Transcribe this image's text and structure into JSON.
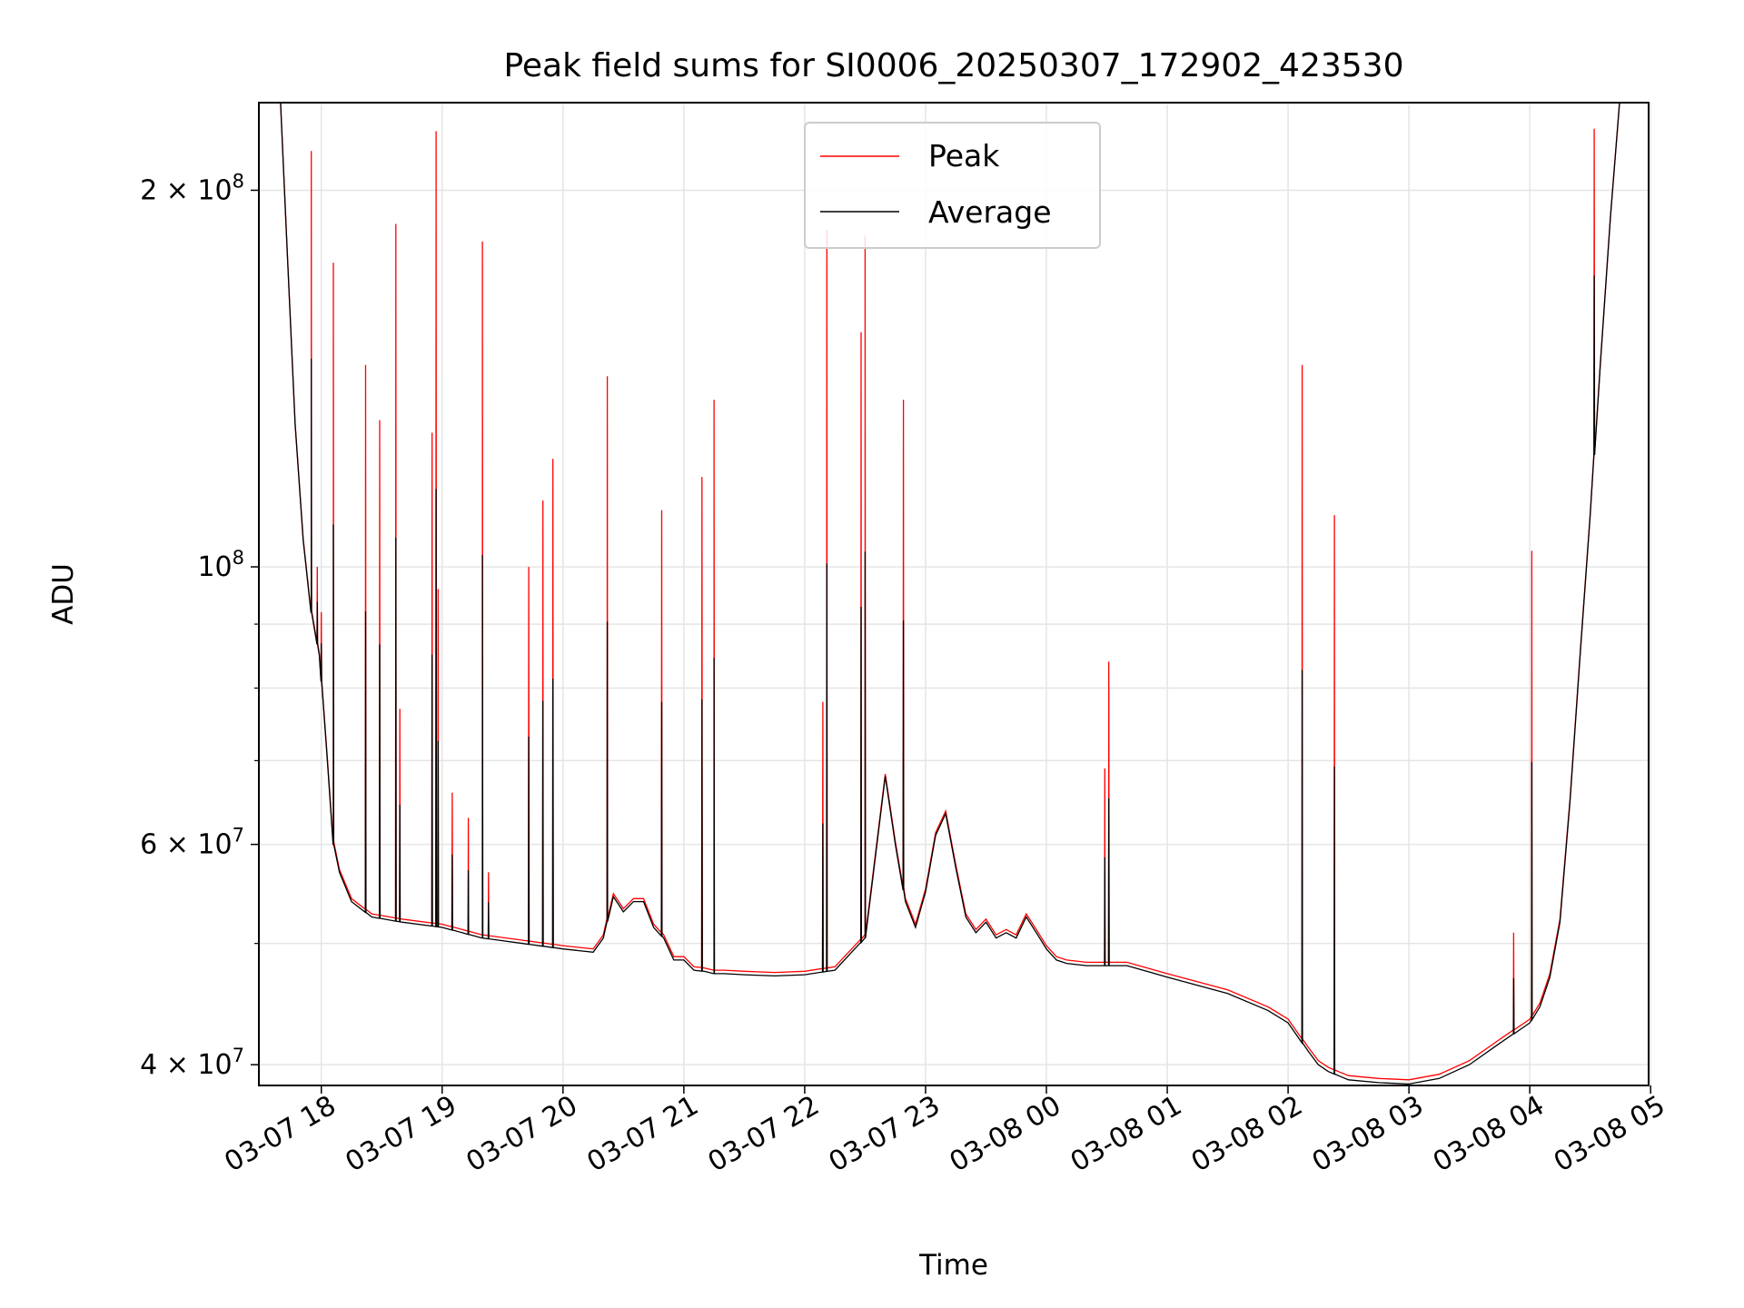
{
  "chart_data": {
    "type": "line",
    "title": "Peak field sums for SI0006_20250307_172902_423530",
    "xlabel": "Time",
    "ylabel": "ADU",
    "yscale": "log",
    "xlim": [
      "2025-03-07 17:29",
      "2025-03-08 04:59"
    ],
    "ylim": [
      38500000,
      235000000
    ],
    "grid": true,
    "legend_position": "upper center",
    "x_ticks": [
      {
        "value": "2025-03-07 18:00",
        "label": "03-07 18"
      },
      {
        "value": "2025-03-07 19:00",
        "label": "03-07 19"
      },
      {
        "value": "2025-03-07 20:00",
        "label": "03-07 20"
      },
      {
        "value": "2025-03-07 21:00",
        "label": "03-07 21"
      },
      {
        "value": "2025-03-07 22:00",
        "label": "03-07 22"
      },
      {
        "value": "2025-03-07 23:00",
        "label": "03-07 23"
      },
      {
        "value": "2025-03-08 00:00",
        "label": "03-08 00"
      },
      {
        "value": "2025-03-08 01:00",
        "label": "03-08 01"
      },
      {
        "value": "2025-03-08 02:00",
        "label": "03-08 02"
      },
      {
        "value": "2025-03-08 03:00",
        "label": "03-08 03"
      },
      {
        "value": "2025-03-08 04:00",
        "label": "03-08 04"
      },
      {
        "value": "2025-03-08 05:00",
        "label": "03-08 05"
      }
    ],
    "y_ticks_major": [
      {
        "value": 40000000,
        "label": "4 × 10⁷",
        "mant": "4",
        "exp": "7"
      },
      {
        "value": 60000000,
        "label": "6 × 10⁷",
        "mant": "6",
        "exp": "7"
      },
      {
        "value": 100000000,
        "label": "10⁸",
        "mant": "",
        "exp": "8"
      },
      {
        "value": 200000000,
        "label": "2 × 10⁸",
        "mant": "2",
        "exp": "8"
      }
    ],
    "y_ticks_minor": [
      50000000,
      70000000,
      80000000,
      90000000
    ],
    "series": [
      {
        "name": "Average",
        "color": "#000000",
        "x": [
          "2025-03-07 17:39",
          "2025-03-07 17:43",
          "2025-03-07 17:47",
          "2025-03-07 17:51",
          "2025-03-07 17:55",
          "2025-03-07 17:59",
          "2025-03-07 18:03",
          "2025-03-07 18:06",
          "2025-03-07 18:09",
          "2025-03-07 18:15",
          "2025-03-07 18:25",
          "2025-03-07 18:40",
          "2025-03-07 19:00",
          "2025-03-07 19:20",
          "2025-03-07 19:40",
          "2025-03-07 20:00",
          "2025-03-07 20:15",
          "2025-03-07 20:20",
          "2025-03-07 20:25",
          "2025-03-07 20:30",
          "2025-03-07 20:35",
          "2025-03-07 20:40",
          "2025-03-07 20:45",
          "2025-03-07 20:50",
          "2025-03-07 20:55",
          "2025-03-07 21:00",
          "2025-03-07 21:05",
          "2025-03-07 21:10",
          "2025-03-07 21:15",
          "2025-03-07 21:20",
          "2025-03-07 21:30",
          "2025-03-07 21:45",
          "2025-03-07 22:00",
          "2025-03-07 22:15",
          "2025-03-07 22:30",
          "2025-03-07 22:40",
          "2025-03-07 22:45",
          "2025-03-07 22:50",
          "2025-03-07 22:55",
          "2025-03-07 23:00",
          "2025-03-07 23:05",
          "2025-03-07 23:10",
          "2025-03-07 23:15",
          "2025-03-07 23:20",
          "2025-03-07 23:25",
          "2025-03-07 23:30",
          "2025-03-07 23:35",
          "2025-03-07 23:40",
          "2025-03-07 23:45",
          "2025-03-07 23:50",
          "2025-03-07 23:55",
          "2025-03-08 00:00",
          "2025-03-08 00:05",
          "2025-03-08 00:10",
          "2025-03-08 00:20",
          "2025-03-08 00:40",
          "2025-03-08 01:00",
          "2025-03-08 01:30",
          "2025-03-08 01:50",
          "2025-03-08 02:00",
          "2025-03-08 02:10",
          "2025-03-08 02:15",
          "2025-03-08 02:20",
          "2025-03-08 02:25",
          "2025-03-08 02:30",
          "2025-03-08 02:45",
          "2025-03-08 03:00",
          "2025-03-08 03:15",
          "2025-03-08 03:30",
          "2025-03-08 03:45",
          "2025-03-08 04:00",
          "2025-03-08 04:05",
          "2025-03-08 04:10",
          "2025-03-08 04:15",
          "2025-03-08 04:20",
          "2025-03-08 04:25",
          "2025-03-08 04:30",
          "2025-03-08 04:35",
          "2025-03-08 04:40",
          "2025-03-08 04:45",
          "2025-03-08 04:50",
          "2025-03-08 04:55",
          "2025-03-08 04:59"
        ],
        "values": [
          250000000,
          180000000,
          130000000,
          105000000,
          92000000,
          85000000,
          70000000,
          60000000,
          57000000,
          54000000,
          52500000,
          52000000,
          51500000,
          50500000,
          50000000,
          49500000,
          49200000,
          50500000,
          54500000,
          53000000,
          54000000,
          54000000,
          51500000,
          50500000,
          48500000,
          48500000,
          47600000,
          47500000,
          47300000,
          47300000,
          47200000,
          47100000,
          47200000,
          47600000,
          50500000,
          68000000,
          60000000,
          54000000,
          51500000,
          55000000,
          61000000,
          63500000,
          57500000,
          52500000,
          51000000,
          52000000,
          50500000,
          51000000,
          50500000,
          52500000,
          51000000,
          49500000,
          48500000,
          48200000,
          48000000,
          48000000,
          47000000,
          45600000,
          44200000,
          43200000,
          41000000,
          40000000,
          39500000,
          39200000,
          38900000,
          38700000,
          38600000,
          39000000,
          40000000,
          41600000,
          43200000,
          44500000,
          47000000,
          52000000,
          65000000,
          85000000,
          110000000,
          145000000,
          190000000,
          240000000,
          250000000,
          250000000,
          250000000
        ]
      },
      {
        "name": "Peak",
        "color": "#ff0000",
        "offset": 300000,
        "spikes": [
          {
            "x": "2025-03-07 17:55",
            "value": 215000000
          },
          {
            "x": "2025-03-07 17:58",
            "value": 100000000
          },
          {
            "x": "2025-03-07 18:00",
            "value": 92000000
          },
          {
            "x": "2025-03-07 18:06",
            "value": 175000000
          },
          {
            "x": "2025-03-07 18:22",
            "value": 145000000
          },
          {
            "x": "2025-03-07 18:29",
            "value": 131000000
          },
          {
            "x": "2025-03-07 18:37",
            "value": 188000000
          },
          {
            "x": "2025-03-07 18:39",
            "value": 77000000
          },
          {
            "x": "2025-03-07 18:55",
            "value": 128000000
          },
          {
            "x": "2025-03-07 18:57",
            "value": 223000000
          },
          {
            "x": "2025-03-07 18:58",
            "value": 96000000
          },
          {
            "x": "2025-03-07 19:05",
            "value": 66000000
          },
          {
            "x": "2025-03-07 19:13",
            "value": 63000000
          },
          {
            "x": "2025-03-07 19:20",
            "value": 182000000
          },
          {
            "x": "2025-03-07 19:23",
            "value": 57000000
          },
          {
            "x": "2025-03-07 19:43",
            "value": 100000000
          },
          {
            "x": "2025-03-07 19:50",
            "value": 113000000
          },
          {
            "x": "2025-03-07 19:55",
            "value": 122000000
          },
          {
            "x": "2025-03-07 20:22",
            "value": 142000000
          },
          {
            "x": "2025-03-07 20:49",
            "value": 111000000
          },
          {
            "x": "2025-03-07 21:09",
            "value": 118000000
          },
          {
            "x": "2025-03-07 21:15",
            "value": 136000000
          },
          {
            "x": "2025-03-07 22:09",
            "value": 78000000
          },
          {
            "x": "2025-03-07 22:11",
            "value": 186000000
          },
          {
            "x": "2025-03-07 22:28",
            "value": 154000000
          },
          {
            "x": "2025-03-07 22:30",
            "value": 184000000
          },
          {
            "x": "2025-03-07 22:49",
            "value": 136000000
          },
          {
            "x": "2025-03-08 00:29",
            "value": 69000000
          },
          {
            "x": "2025-03-08 00:31",
            "value": 84000000
          },
          {
            "x": "2025-03-08 02:07",
            "value": 145000000
          },
          {
            "x": "2025-03-08 02:23",
            "value": 110000000
          },
          {
            "x": "2025-03-08 03:52",
            "value": 51000000
          },
          {
            "x": "2025-03-08 04:01",
            "value": 103000000
          },
          {
            "x": "2025-03-08 04:32",
            "value": 224000000
          }
        ]
      }
    ],
    "legend": [
      {
        "name": "Peak",
        "color": "#ff0000"
      },
      {
        "name": "Average",
        "color": "#000000"
      }
    ]
  }
}
